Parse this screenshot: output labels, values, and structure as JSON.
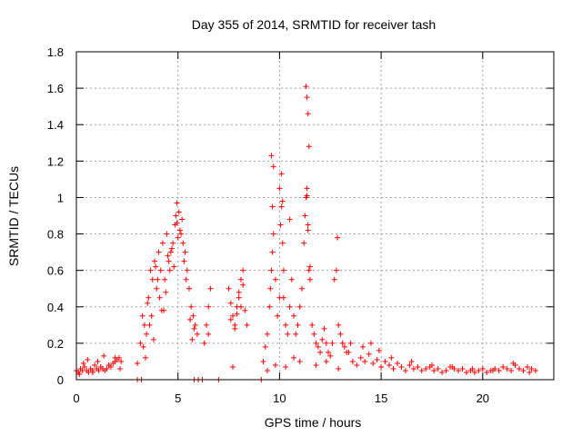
{
  "chart_data": {
    "type": "scatter",
    "title": "Day 355 of 2014, SRMTID for receiver tash",
    "xlabel": "GPS time / hours",
    "ylabel": "SRMTID / TECUs",
    "xlim": [
      0,
      23.5
    ],
    "ylim": [
      0,
      1.8
    ],
    "xticks": [
      "0",
      "5",
      "10",
      "15",
      "20"
    ],
    "yticks": [
      "0",
      "0.2",
      "0.4",
      "0.6",
      "0.8",
      "1",
      "1.2",
      "1.4",
      "1.6",
      "1.8"
    ],
    "grid": true,
    "marker": "plus",
    "color": "#ff0000",
    "series": [
      {
        "name": "SRMTID",
        "x": [
          0.0,
          0.1,
          0.2,
          0.3,
          0.4,
          0.5,
          0.6,
          0.7,
          0.8,
          0.9,
          1.0,
          1.1,
          1.2,
          1.3,
          1.4,
          1.5,
          1.6,
          1.7,
          1.8,
          1.9,
          2.0,
          2.1,
          2.2,
          0.15,
          0.35,
          0.55,
          0.8,
          1.05,
          1.35,
          1.6,
          1.9,
          2.15,
          3.0,
          3.15,
          3.25,
          3.35,
          3.45,
          3.55,
          3.65,
          3.75,
          3.85,
          3.95,
          4.05,
          4.15,
          4.25,
          4.35,
          4.45,
          4.55,
          4.65,
          4.75,
          4.85,
          4.95,
          5.05,
          5.15,
          5.25,
          5.35,
          5.45,
          5.55,
          5.65,
          5.75,
          5.85,
          5.95,
          3.3,
          3.5,
          3.7,
          3.9,
          4.1,
          4.3,
          4.5,
          4.7,
          4.8,
          4.9,
          5.0,
          5.1,
          5.2,
          5.4,
          5.6,
          5.8,
          3.6,
          4.0,
          4.4,
          4.6,
          4.95,
          5.3,
          5.7,
          3.4,
          3.8,
          4.2,
          6.3,
          6.4,
          6.5,
          6.6,
          6.5,
          7.5,
          7.6,
          7.7,
          7.8,
          7.9,
          8.0,
          8.1,
          8.2,
          8.3,
          8.4,
          7.6,
          7.8,
          8.0,
          8.2,
          7.7,
          7.9,
          8.1,
          9.2,
          9.3,
          9.4,
          9.5,
          9.55,
          9.6,
          9.65,
          9.7,
          9.8,
          9.9,
          10.0,
          10.05,
          10.1,
          10.15,
          10.2,
          10.3,
          10.4,
          10.5,
          10.6,
          10.7,
          10.8,
          10.9,
          11.0,
          11.1,
          11.2,
          11.25,
          11.3,
          11.35,
          11.4,
          11.45,
          11.5,
          11.6,
          11.7,
          11.8,
          11.9,
          12.0,
          12.1,
          12.2,
          12.3,
          12.4,
          12.5,
          12.6,
          12.7,
          12.8,
          12.85,
          12.9,
          13.0,
          13.1,
          13.2,
          13.3,
          9.6,
          9.7,
          10.0,
          10.1,
          10.15,
          10.5,
          11.3,
          11.35,
          11.4,
          11.45,
          11.4,
          11.35,
          11.5,
          9.65,
          10.2,
          9.4,
          9.8,
          10.3,
          10.7,
          11.0,
          11.8,
          12.3,
          12.9,
          13.4,
          13.6,
          13.8,
          14.0,
          14.2,
          14.4,
          14.6,
          14.8,
          15.0,
          15.2,
          15.4,
          15.6,
          15.8,
          16.0,
          16.2,
          16.4,
          16.6,
          16.8,
          17.0,
          17.2,
          17.4,
          17.6,
          17.8,
          18.0,
          18.2,
          18.4,
          18.6,
          18.8,
          19.0,
          19.2,
          19.4,
          19.6,
          19.8,
          20.0,
          20.2,
          20.4,
          20.6,
          20.8,
          21.0,
          21.2,
          21.4,
          21.6,
          21.8,
          22.0,
          22.2,
          22.4,
          22.6,
          13.5,
          14.1,
          14.5,
          14.9,
          15.5,
          16.5,
          17.5,
          18.5,
          19.5,
          20.5,
          21.5,
          22.3,
          3.0,
          3.2,
          5.8,
          6.0,
          6.2,
          7.0,
          9.1
        ],
        "y": [
          0.05,
          0.04,
          0.06,
          0.05,
          0.07,
          0.05,
          0.04,
          0.06,
          0.05,
          0.08,
          0.06,
          0.05,
          0.07,
          0.06,
          0.05,
          0.06,
          0.08,
          0.07,
          0.09,
          0.1,
          0.11,
          0.12,
          0.1,
          0.03,
          0.09,
          0.11,
          0.04,
          0.1,
          0.13,
          0.08,
          0.12,
          0.06,
          0.09,
          0.2,
          0.35,
          0.3,
          0.25,
          0.45,
          0.6,
          0.55,
          0.65,
          0.5,
          0.7,
          0.6,
          0.75,
          0.55,
          0.8,
          0.65,
          0.7,
          0.75,
          0.85,
          0.97,
          0.92,
          0.8,
          0.75,
          0.7,
          0.6,
          0.5,
          0.4,
          0.35,
          0.3,
          0.25,
          0.18,
          0.42,
          0.35,
          0.62,
          0.45,
          0.38,
          0.68,
          0.72,
          0.62,
          0.9,
          0.78,
          0.82,
          0.88,
          0.55,
          0.33,
          0.28,
          0.3,
          0.55,
          0.48,
          0.6,
          0.86,
          0.65,
          0.22,
          0.12,
          0.22,
          0.38,
          0.2,
          0.3,
          0.4,
          0.5,
          0.25,
          0.5,
          0.42,
          0.35,
          0.3,
          0.4,
          0.45,
          0.55,
          0.6,
          0.38,
          0.3,
          0.33,
          0.28,
          0.48,
          0.52,
          0.07,
          0.36,
          0.4,
          0.1,
          0.18,
          0.25,
          0.4,
          0.5,
          0.6,
          0.7,
          0.8,
          0.55,
          0.35,
          0.45,
          0.85,
          0.95,
          0.75,
          0.6,
          0.3,
          0.25,
          0.4,
          0.55,
          0.35,
          0.25,
          0.3,
          0.4,
          0.5,
          0.75,
          0.9,
          1.0,
          1.05,
          0.85,
          0.6,
          0.55,
          0.3,
          0.25,
          0.2,
          0.18,
          0.15,
          0.22,
          0.28,
          0.2,
          0.15,
          0.13,
          0.2,
          0.55,
          0.6,
          0.78,
          0.3,
          0.25,
          0.2,
          0.18,
          0.15,
          1.23,
          1.17,
          1.05,
          1.13,
          0.98,
          0.88,
          1.61,
          1.55,
          1.46,
          1.28,
          0.82,
          1.01,
          0.62,
          0.95,
          0.45,
          0.05,
          0.08,
          0.07,
          0.12,
          0.1,
          0.08,
          0.1,
          0.06,
          0.15,
          0.1,
          0.08,
          0.12,
          0.1,
          0.14,
          0.09,
          0.11,
          0.07,
          0.1,
          0.08,
          0.06,
          0.09,
          0.07,
          0.05,
          0.08,
          0.06,
          0.07,
          0.05,
          0.06,
          0.07,
          0.05,
          0.06,
          0.04,
          0.05,
          0.07,
          0.06,
          0.05,
          0.06,
          0.04,
          0.05,
          0.04,
          0.05,
          0.06,
          0.04,
          0.05,
          0.06,
          0.05,
          0.07,
          0.06,
          0.05,
          0.08,
          0.06,
          0.05,
          0.07,
          0.06,
          0.05,
          0.2,
          0.18,
          0.2,
          0.16,
          0.12,
          0.1,
          0.08,
          0.07,
          0.06,
          0.05,
          0.09,
          0.04,
          0.0,
          0.0,
          0.0,
          0.0,
          0.0,
          0.0,
          0.0
        ]
      }
    ]
  }
}
